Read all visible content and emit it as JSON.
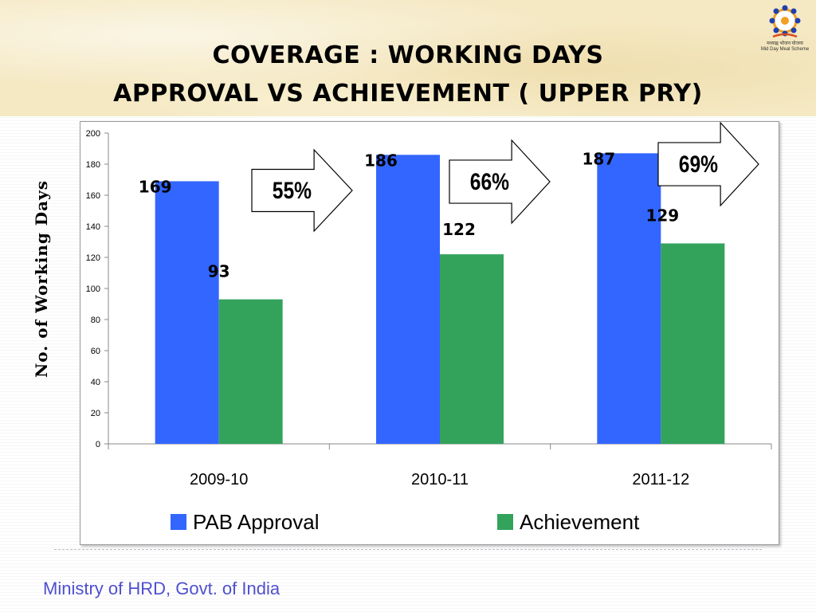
{
  "slide": {
    "title_line1": "COVERAGE : WORKING DAYS",
    "title_line2": "APPROVAL VS ACHIEVEMENT ( UPPER PRY)",
    "footer": "Ministry of HRD, Govt. of India",
    "logo_caption_1": "मध्याह्न भोजन योजना",
    "logo_caption_2": "Mid Day Meal Scheme"
  },
  "chart_data": {
    "type": "bar",
    "title": "",
    "xlabel": "",
    "ylabel": "No. of Working Days",
    "categories": [
      "2009-10",
      "2010-11",
      "2011-12"
    ],
    "series": [
      {
        "name": "PAB Approval",
        "values": [
          169,
          186,
          187
        ],
        "color": "#3366ff"
      },
      {
        "name": "Achievement",
        "values": [
          93,
          122,
          129
        ],
        "color": "#33a35c"
      }
    ],
    "ylim": [
      0,
      200
    ],
    "yticks": [
      0,
      20,
      40,
      60,
      80,
      100,
      120,
      140,
      160,
      180,
      200
    ],
    "grid": false,
    "legend": "bottom",
    "annotations": [
      "55%",
      "66%",
      "69%"
    ]
  }
}
